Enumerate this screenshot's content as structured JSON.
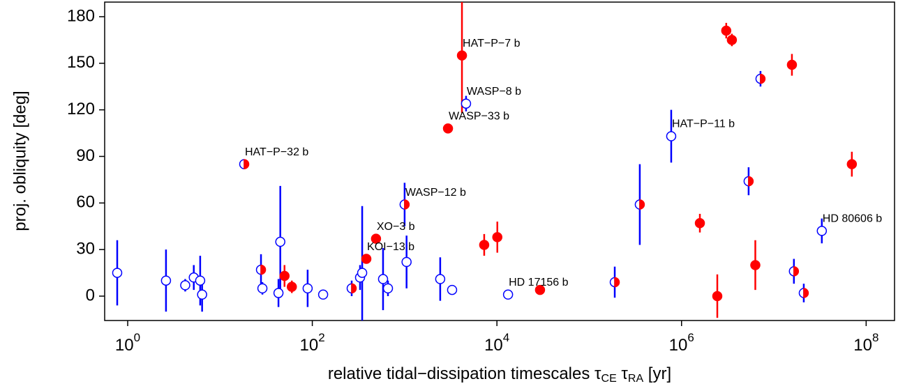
{
  "chart_data": {
    "type": "scatter",
    "xlabel": "relative tidal−dissipation timescales τCE τRA  [yr]",
    "ylabel": "proj. obliquity [deg]",
    "xscale": "log",
    "xlim": [
      0.563,
      203000000
    ],
    "ylim": [
      -15.7,
      189.4
    ],
    "xticks": [
      {
        "value": 1,
        "label": "10^0"
      },
      {
        "value": 100,
        "label": "10^2"
      },
      {
        "value": 10000,
        "label": "10^4"
      },
      {
        "value": 1000000,
        "label": "10^6"
      },
      {
        "value": 100000000,
        "label": "10^8"
      }
    ],
    "yticks": [
      0,
      30,
      60,
      90,
      120,
      150,
      180
    ],
    "series": [
      {
        "style": "open",
        "color": "#0000ff",
        "x": [
          0.77,
          2.6,
          4.2,
          5.2,
          6.1,
          6.4,
          28.8,
          43,
          45,
          89,
          131,
          329,
          347,
          584,
          660,
          1050,
          2430,
          3270,
          4630,
          13200,
          773000,
          33100000
        ],
        "values": [
          15,
          10,
          7,
          12,
          10,
          1,
          5,
          2,
          35,
          5,
          1,
          12,
          15,
          11,
          5,
          22,
          11,
          4,
          124,
          1,
          103,
          42
        ],
        "errors": [
          21,
          20,
          4,
          8,
          16,
          11,
          4,
          9,
          36,
          12,
          0,
          8,
          43,
          20,
          5,
          17,
          14,
          0,
          5,
          3,
          17,
          8
        ],
        "labels": [
          null,
          null,
          null,
          null,
          null,
          null,
          null,
          null,
          null,
          null,
          null,
          null,
          null,
          null,
          null,
          null,
          null,
          null,
          "WASP−8 b",
          "HD 17156 b",
          "HAT−P−11 b",
          "HD 80606 b"
        ]
      },
      {
        "style": "half",
        "color": "#0000ff",
        "fill_color": "#ff0000",
        "x": [
          18.3,
          27.8,
          267,
          1000,
          189000,
          353000,
          5330000,
          7170000,
          16500000,
          21100000
        ],
        "values": [
          85,
          17,
          5,
          59,
          9,
          59,
          74,
          140,
          16,
          2
        ],
        "errors": [
          0,
          10,
          5,
          14,
          10,
          26,
          9,
          5,
          8,
          6
        ],
        "labels": [
          "HAT−P−32 b",
          null,
          null,
          "WASP−12 b",
          null,
          null,
          null,
          null,
          null,
          null
        ]
      },
      {
        "style": "filled",
        "color": "#ff0000",
        "x": [
          50,
          60,
          385,
          490,
          2950,
          4180,
          7280,
          10100,
          29300,
          1580000,
          2440000,
          3050000,
          3510000,
          6300000,
          15700000,
          70000000
        ],
        "values": [
          13,
          6,
          24,
          37,
          108,
          155,
          33,
          38,
          4,
          47,
          0,
          171,
          165,
          20,
          149,
          85
        ],
        "errors": [
          7,
          4,
          3,
          2,
          0,
          37,
          7,
          10,
          3,
          6,
          14,
          5,
          4,
          16,
          7,
          8
        ],
        "labels": [
          null,
          null,
          "KOI−13 b",
          "XO−3 b",
          "WASP−33 b",
          "HAT−P−7 b",
          null,
          null,
          null,
          null,
          null,
          null,
          null,
          null,
          null,
          null
        ]
      }
    ]
  }
}
